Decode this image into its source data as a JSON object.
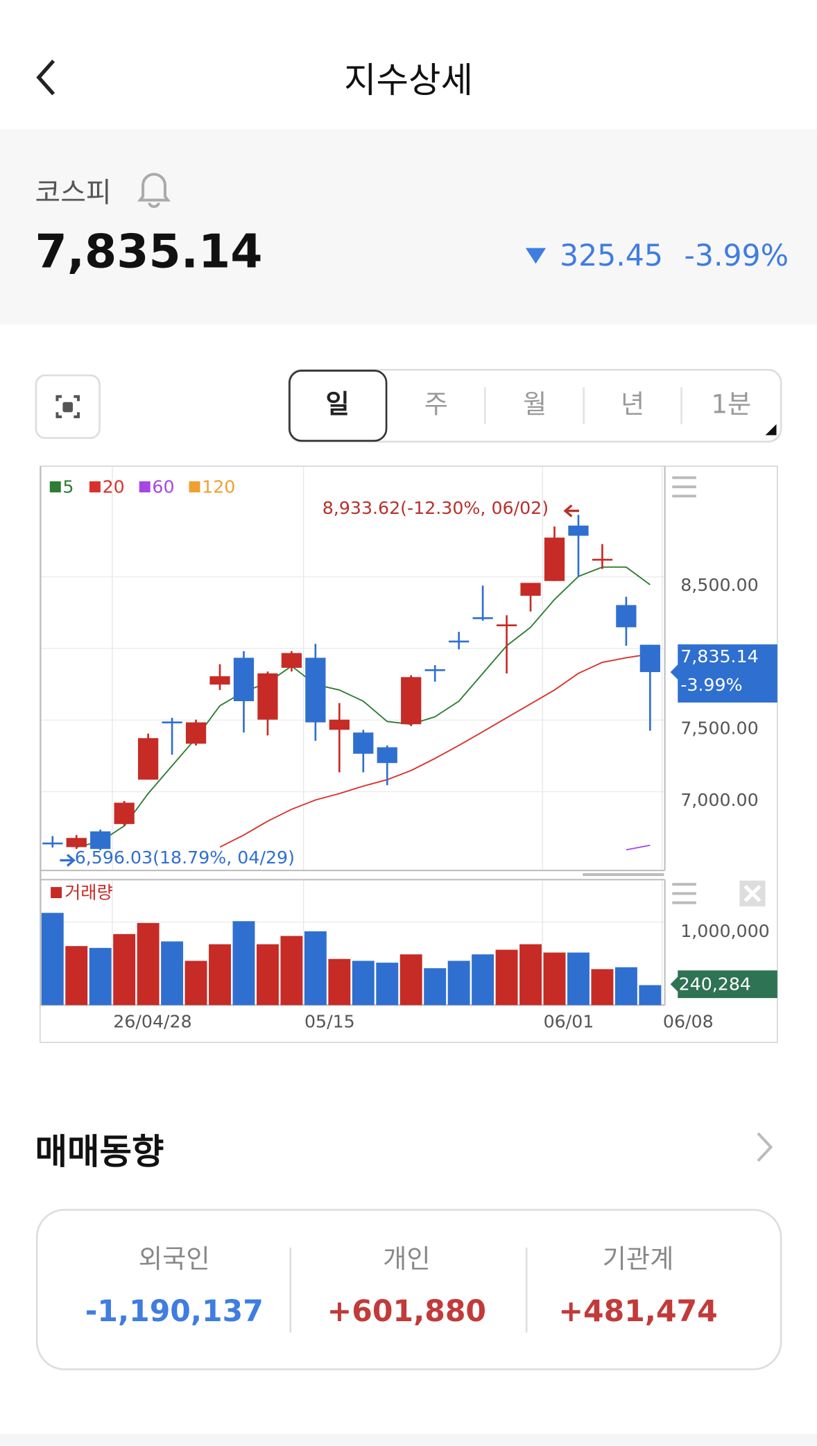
{
  "header": {
    "title": "지수상세"
  },
  "index": {
    "name": "코스피",
    "price": "7,835.14",
    "change": "325.45",
    "change_pct": "-3.99%"
  },
  "tabs": [
    "일",
    "주",
    "월",
    "년",
    "1분"
  ],
  "chart_data": {
    "type": "candlestick",
    "categories": [
      null,
      null,
      null,
      "26/04/28",
      null,
      null,
      null,
      null,
      null,
      null,
      null,
      "05/15",
      null,
      null,
      null,
      null,
      null,
      null,
      null,
      null,
      null,
      "06/01",
      null,
      null,
      null,
      null,
      "06/08"
    ],
    "open": [
      6645,
      6613,
      6723,
      6774,
      7084,
      7490,
      7335,
      7748,
      7935,
      7503,
      7865,
      7935,
      7432,
      7413,
      7310,
      7471,
      7855,
      8055,
      8218,
      8155,
      8368,
      8471,
      8858,
      8620,
      8303,
      8026,
      null
    ],
    "high": [
      6690,
      6697,
      6735,
      6935,
      7406,
      7516,
      7503,
      7890,
      7981,
      7839,
      7981,
      8032,
      7619,
      7432,
      7323,
      7813,
      7884,
      8116,
      8439,
      8232,
      8458,
      8852,
      8933,
      8729,
      8361,
      8026,
      null
    ],
    "low": [
      6610,
      6600,
      6590,
      6761,
      7084,
      7258,
      7322,
      7710,
      7413,
      7393,
      7839,
      7355,
      7135,
      7135,
      7045,
      7458,
      7768,
      7994,
      8194,
      7826,
      8258,
      8471,
      8497,
      8555,
      8019,
      7426,
      null
    ],
    "close": [
      6635,
      6677,
      6600,
      6923,
      7374,
      7480,
      7484,
      7806,
      7632,
      7826,
      7968,
      7484,
      7503,
      7265,
      7200,
      7800,
      7845,
      8045,
      8206,
      8168,
      8458,
      8774,
      8787,
      8626,
      8148,
      7835.14,
      null
    ],
    "close_labels": [
      null,
      null,
      null,
      null,
      null,
      null,
      null,
      null,
      null,
      null,
      null,
      null,
      null,
      null,
      null,
      null,
      null,
      null,
      null,
      null,
      null,
      null,
      null,
      null,
      null,
      "7,835.14",
      null
    ],
    "up_color": "#c62b26",
    "down_color": "#2f6fd0",
    "ylim": [
      6450,
      9270
    ],
    "yticks": [
      {
        "value": 7000,
        "label": "7,000.00"
      },
      {
        "value": 7500,
        "label": "7,500.00"
      },
      {
        "value": 8000,
        "label": null
      },
      {
        "value": 8500,
        "label": "8,500.00"
      }
    ],
    "series": [
      {
        "name": "5",
        "color": "#2e7d32",
        "values": [
          null,
          6613,
          6652,
          6761,
          6987,
          7181,
          7374,
          7600,
          7697,
          7761,
          7877,
          7748,
          7710,
          7632,
          7490,
          7471,
          7523,
          7632,
          7826,
          8019,
          8148,
          8342,
          8503,
          8568,
          8568,
          8445,
          null
        ]
      },
      {
        "name": "20",
        "color": "#d9322c",
        "values": [
          null,
          null,
          null,
          null,
          null,
          null,
          null,
          6613,
          6697,
          6794,
          6877,
          6942,
          6987,
          7039,
          7084,
          7148,
          7232,
          7323,
          7419,
          7516,
          7613,
          7710,
          7826,
          7903,
          7935,
          7961,
          null
        ]
      },
      {
        "name": "60",
        "color": "#a646e6",
        "values": [
          null,
          null,
          null,
          null,
          null,
          null,
          null,
          null,
          null,
          null,
          null,
          null,
          null,
          null,
          null,
          null,
          null,
          null,
          null,
          null,
          null,
          null,
          null,
          null,
          6594,
          6626,
          null
        ]
      },
      {
        "name": "120",
        "color": "#f0a030",
        "values": [
          null,
          null,
          null,
          null,
          null,
          null,
          null,
          null,
          null,
          null,
          null,
          null,
          null,
          null,
          null,
          null,
          null,
          null,
          null,
          null,
          null,
          null,
          null,
          null,
          null,
          null,
          null
        ]
      }
    ],
    "high_label": "8,933.62(-12.30%, 06/02)",
    "low_label": "6,596.03(18.79%, 04/29)",
    "volume": {
      "name": "거래량",
      "color": "#c62b26",
      "last_color": "#2e7353",
      "values": [
        1111000,
        711000,
        689000,
        856000,
        989000,
        767000,
        533000,
        733000,
        1011000,
        733000,
        833000,
        889000,
        556000,
        533000,
        511000,
        611000,
        444000,
        533000,
        611000,
        667000,
        733000,
        633000,
        633000,
        433000,
        456000,
        240284,
        null
      ],
      "value_labels": [
        null,
        null,
        null,
        null,
        null,
        null,
        null,
        null,
        null,
        null,
        null,
        null,
        null,
        null,
        null,
        null,
        null,
        null,
        null,
        null,
        null,
        null,
        null,
        null,
        null,
        "240,284",
        null
      ],
      "ylim": [
        0,
        1500000
      ],
      "yticks": [
        {
          "value": 1000000,
          "label": "1,000,000"
        }
      ]
    }
  },
  "trading": {
    "title": "매매동향",
    "columns": [
      {
        "label": "외국인",
        "value": "-1,190,137"
      },
      {
        "label": "개인",
        "value": "+601,880"
      },
      {
        "label": "기관계",
        "value": "+481,474"
      }
    ]
  }
}
